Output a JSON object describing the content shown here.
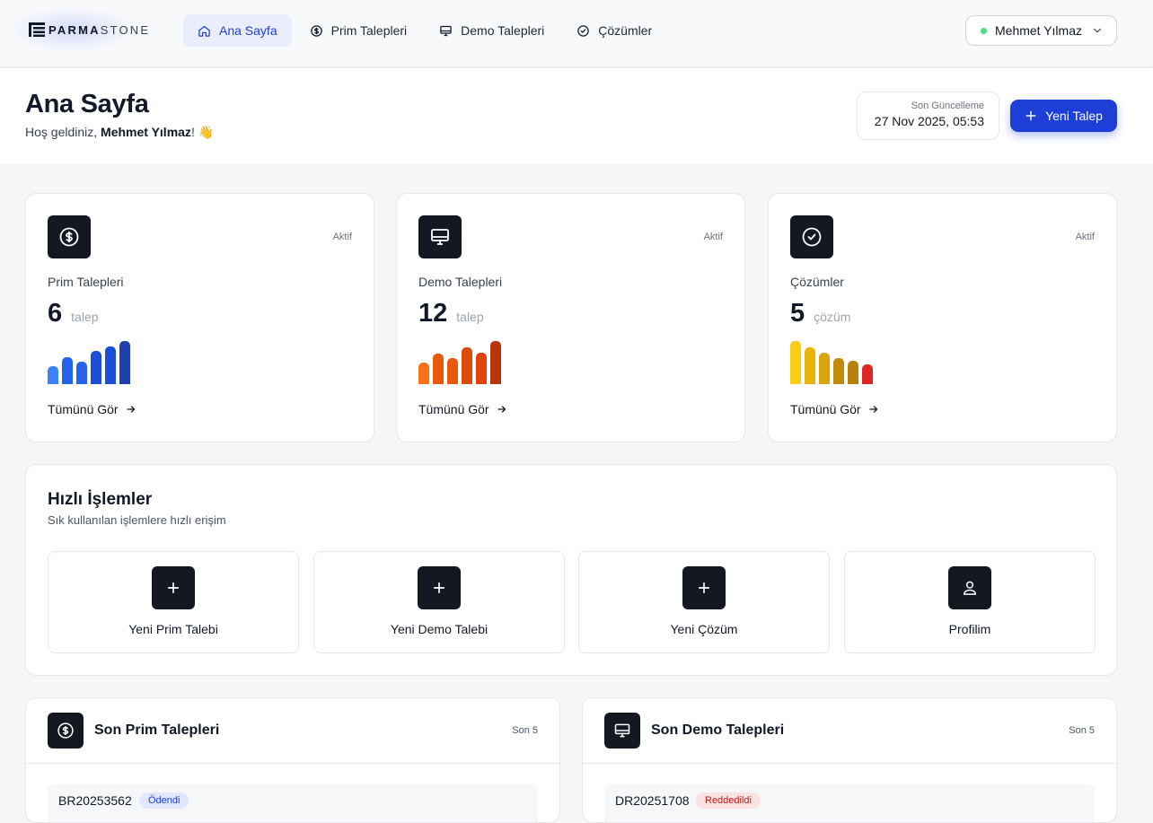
{
  "brand": {
    "name_bold": "PARMA",
    "name_light": "STONE"
  },
  "nav": {
    "items": [
      {
        "label": "Ana Sayfa",
        "icon": "home-icon",
        "active": true
      },
      {
        "label": "Prim Talepleri",
        "icon": "dollar-circle-icon",
        "active": false
      },
      {
        "label": "Demo Talepleri",
        "icon": "monitor-icon",
        "active": false
      },
      {
        "label": "Çözümler",
        "icon": "check-circle-icon",
        "active": false
      }
    ]
  },
  "user": {
    "name": "Mehmet Yılmaz",
    "status_color": "#4ade80"
  },
  "header": {
    "title": "Ana Sayfa",
    "welcome_prefix": "Hoş geldiniz, ",
    "welcome_name": "Mehmet Yılmaz",
    "welcome_suffix": "! 👋",
    "last_update_label": "Son Güncelleme",
    "last_update_value": "27 Nov 2025, 05:53",
    "new_button_label": "Yeni Talep"
  },
  "stats": [
    {
      "status": "Aktif",
      "title": "Prim Talepleri",
      "count": "6",
      "unit": "talep",
      "link": "Tümünü Gör",
      "icon": "dollar-circle-icon",
      "bars": [
        0.42,
        0.62,
        0.52,
        0.78,
        0.88,
        1.0
      ],
      "colors": [
        "#3b82f6",
        "#2563eb",
        "#2563eb",
        "#1d4ed8",
        "#1d4ed8",
        "#1e40af"
      ]
    },
    {
      "status": "Aktif",
      "title": "Demo Talepleri",
      "count": "12",
      "unit": "talep",
      "link": "Tümünü Gör",
      "icon": "monitor-icon",
      "bars": [
        0.5,
        0.7,
        0.6,
        0.85,
        0.72,
        1.0
      ],
      "colors": [
        "#f97316",
        "#ea580c",
        "#ea580c",
        "#dc4a0c",
        "#e2420b",
        "#b8340b"
      ]
    },
    {
      "status": "Aktif",
      "title": "Çözümler",
      "count": "5",
      "unit": "çözüm",
      "link": "Tümünü Gör",
      "icon": "check-circle-icon",
      "bars": [
        1.0,
        0.85,
        0.72,
        0.6,
        0.55,
        0.45
      ],
      "colors": [
        "#facc15",
        "#eab308",
        "#d9a30a",
        "#c28a0a",
        "#b7800c",
        "#dc2626"
      ]
    }
  ],
  "quick": {
    "title": "Hızlı İşlemler",
    "subtitle": "Sık kullanılan işlemlere hızlı erişim",
    "actions": [
      {
        "label": "Yeni Prim Talebi",
        "icon": "plus-icon"
      },
      {
        "label": "Yeni Demo Talebi",
        "icon": "plus-icon"
      },
      {
        "label": "Yeni Çözüm",
        "icon": "plus-icon"
      },
      {
        "label": "Profilim",
        "icon": "user-icon"
      }
    ]
  },
  "recent_prim": {
    "title": "Son Prim Talepleri",
    "count_label": "Son 5",
    "first_id": "BR20253562",
    "first_status": "Ödendi"
  },
  "recent_demo": {
    "title": "Son Demo Talepleri",
    "count_label": "Son 5",
    "first_id": "DR20251708",
    "first_status": "Reddedildi"
  }
}
